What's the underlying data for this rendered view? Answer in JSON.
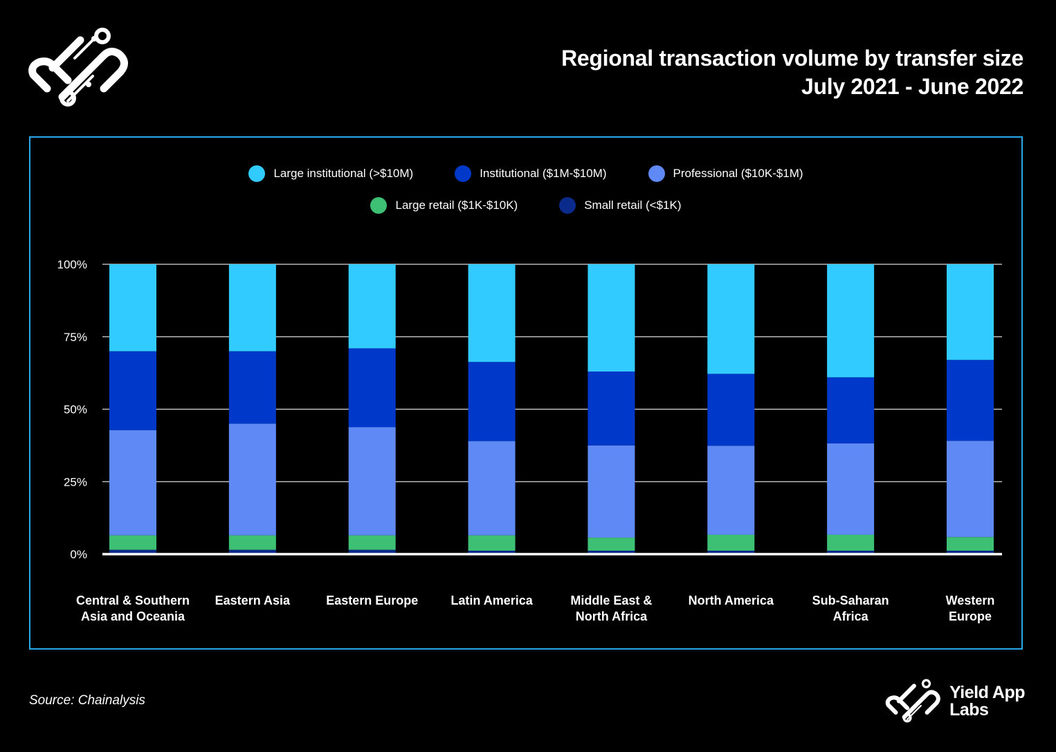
{
  "header": {
    "title_line1": "Regional transaction volume by transfer size",
    "title_line2": "July 2021 - June 2022"
  },
  "footer": {
    "source": "Source: Chainalysis",
    "brand_line1": "Yield App",
    "brand_line2": "Labs"
  },
  "chart_data": {
    "type": "bar",
    "stacked": true,
    "title": "Regional transaction volume by transfer size",
    "subtitle": "July 2021 - June 2022",
    "categories": [
      [
        "Central & Southern",
        "Asia and Oceania"
      ],
      [
        "Eastern Asia"
      ],
      [
        "Eastern Europe"
      ],
      [
        "Latin America"
      ],
      [
        "Middle East &",
        "North Africa"
      ],
      [
        "North America"
      ],
      [
        "Sub-Saharan",
        "Africa"
      ],
      [
        "Western",
        "Europe"
      ]
    ],
    "yticks": [
      "0%",
      "25%",
      "50%",
      "75%",
      "100%"
    ],
    "ylim": [
      0,
      100
    ],
    "series": [
      {
        "name": "Small retail (<$1K)",
        "color": "#0a2a8c",
        "values": [
          1.5,
          1.5,
          1.5,
          1.2,
          1.2,
          1.2,
          1.2,
          1.2
        ]
      },
      {
        "name": "Large retail ($1K-$10K)",
        "color": "#3dbf74",
        "values": [
          5.0,
          5.0,
          5.0,
          5.3,
          4.5,
          5.5,
          5.5,
          4.7
        ]
      },
      {
        "name": "Professional ($10K-$1M)",
        "color": "#5f8af6",
        "values": [
          36.3,
          38.5,
          37.3,
          32.5,
          31.8,
          30.7,
          31.5,
          33.2
        ]
      },
      {
        "name": "Institutional ($1M-$10M)",
        "color": "#0038c9",
        "values": [
          27.2,
          25.0,
          27.2,
          27.3,
          25.5,
          24.8,
          22.8,
          27.9
        ]
      },
      {
        "name": "Large institutional (>$10M)",
        "color": "#31cbff",
        "values": [
          30.0,
          30.0,
          29.0,
          33.7,
          37.0,
          37.8,
          39.0,
          33.0
        ]
      }
    ],
    "legend_order_row1": [
      4,
      3,
      2
    ],
    "legend_order_row2": [
      1,
      0
    ]
  }
}
